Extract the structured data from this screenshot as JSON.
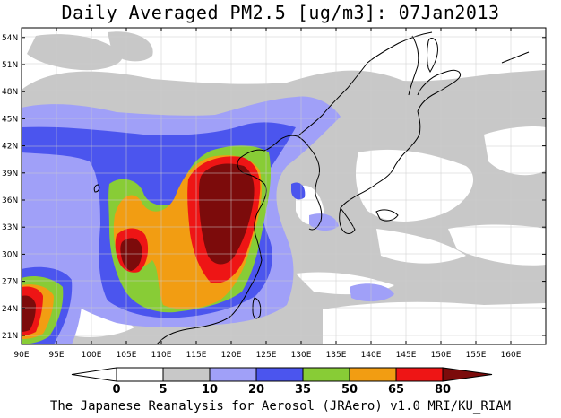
{
  "title": "Daily Averaged PM2.5 [ug/m3]: 07Jan2013",
  "credit": "The Japanese Reanalysis for Aerosol (JRAero) v1.0 MRI/KU_RIAM",
  "map": {
    "lon_labels": [
      "90E",
      "95E",
      "100E",
      "105E",
      "110E",
      "115E",
      "120E",
      "125E",
      "130E",
      "135E",
      "140E",
      "145E",
      "150E",
      "155E",
      "160E"
    ],
    "lat_labels": [
      "21N",
      "24N",
      "27N",
      "30N",
      "33N",
      "36N",
      "39N",
      "42N",
      "45N",
      "48N",
      "51N",
      "54N"
    ]
  },
  "legend": {
    "breaks": [
      "0",
      "5",
      "10",
      "20",
      "35",
      "50",
      "65",
      "80"
    ],
    "colors": [
      "#ffffff",
      "#ffffff",
      "#c8c8c8",
      "#a0a0f8",
      "#4b55ee",
      "#88cc36",
      "#f29d12",
      "#ee1515",
      "#7c0b0b"
    ]
  }
}
